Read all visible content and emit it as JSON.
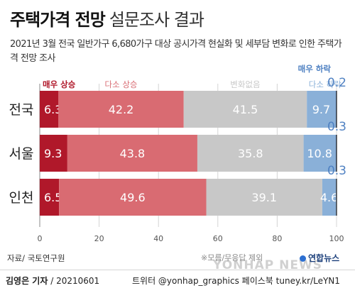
{
  "title_bold": "주택가격 전망",
  "title_light": "설문조사 결과",
  "subtitle": "2021년 3월 전국 일반가구 6,680가구 대상 공시가격 현실화 및 세부담 변화로 인한 주택가격 전망 조사",
  "source": "자료/ 국토연구원",
  "note": "※모름/무응답 제외",
  "credit_name": "김영은 기자",
  "credit_date": "/ 20210601",
  "social": "트위터 @yonhap_graphics  페이스북 tuney.kr/LeYN1",
  "logo": "연합뉴스",
  "watermark": "YONHAP NEWS",
  "colors": {
    "sharp_rise": "#b0182a",
    "rise": "#d96b72",
    "no_change": "#c8c8c8",
    "fall": "#8ab0d8",
    "sharp_fall": "#4f81c2"
  },
  "chart_data": {
    "type": "bar",
    "orientation": "horizontal",
    "stacked": true,
    "categories": [
      "전국",
      "서울",
      "인천"
    ],
    "series": [
      {
        "name": "매우 상승",
        "values": [
          6.3,
          9.3,
          6.5
        ]
      },
      {
        "name": "다소 상승",
        "values": [
          42.2,
          43.8,
          49.6
        ]
      },
      {
        "name": "변화없음",
        "values": [
          41.5,
          35.8,
          39.1
        ]
      },
      {
        "name": "다소 하락",
        "values": [
          9.7,
          10.8,
          4.6
        ]
      },
      {
        "name": "매우 하락",
        "values": [
          0.2,
          0.3,
          0.3
        ]
      }
    ],
    "xlim": [
      0,
      100
    ],
    "x_ticks": [
      0,
      20,
      40,
      60,
      80,
      100
    ],
    "legend": "top"
  }
}
